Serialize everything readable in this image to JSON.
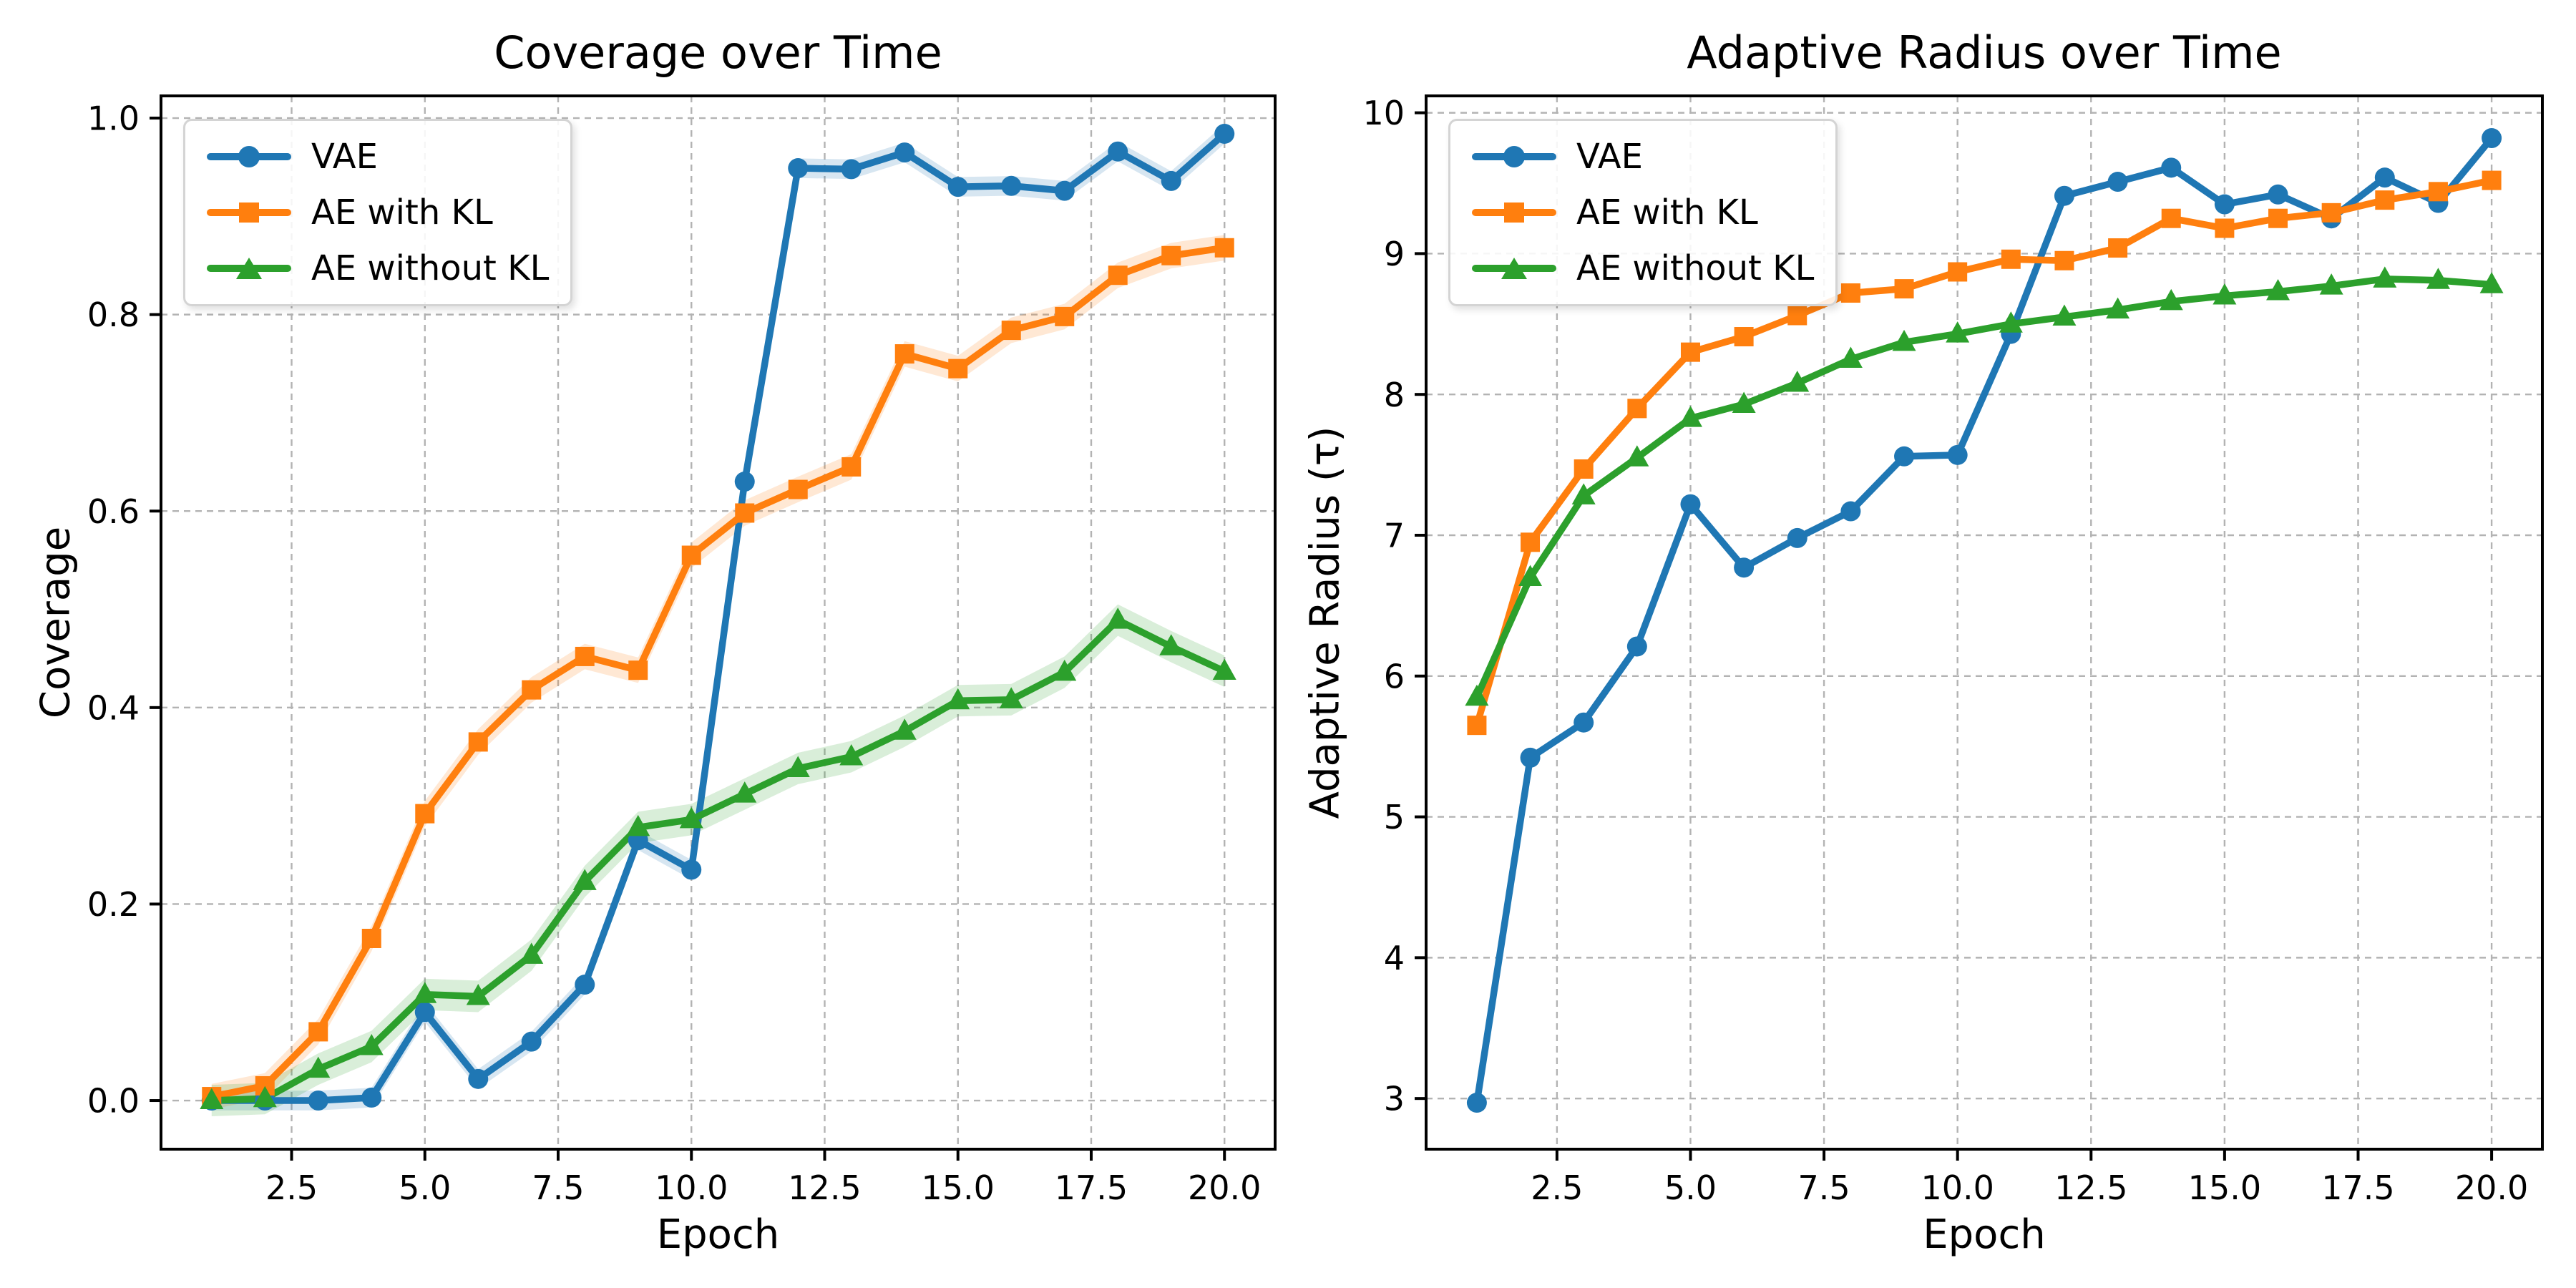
{
  "figure": {
    "background": "#ffffff"
  },
  "colors": {
    "vae": "#1f77b4",
    "ae_with_kl": "#ff7f0e",
    "ae_without_kl": "#2ca02c",
    "grid": "#b3b3b3",
    "spine": "#000000",
    "text": "#000000"
  },
  "legend": {
    "entries": [
      {
        "label": "VAE",
        "marker": "circle",
        "color": "#1f77b4"
      },
      {
        "label": "AE with KL",
        "marker": "square",
        "color": "#ff7f0e"
      },
      {
        "label": "AE without KL",
        "marker": "triangle",
        "color": "#2ca02c"
      }
    ]
  },
  "chart_data": [
    {
      "type": "line",
      "title": "Coverage over Time",
      "xlabel": "Epoch",
      "ylabel": "Coverage",
      "x": [
        1,
        2,
        3,
        4,
        5,
        6,
        7,
        8,
        9,
        10,
        11,
        12,
        13,
        14,
        15,
        16,
        17,
        18,
        19,
        20
      ],
      "xlim": [
        0.05,
        20.95
      ],
      "ylim": [
        -0.0495,
        1.0226
      ],
      "grid": true,
      "legend_position": "upper left",
      "xticks": [
        {
          "v": 2.5,
          "label": "2.5"
        },
        {
          "v": 5,
          "label": "5.0"
        },
        {
          "v": 7.5,
          "label": "7.5"
        },
        {
          "v": 10,
          "label": "10.0"
        },
        {
          "v": 12.5,
          "label": "12.5"
        },
        {
          "v": 15,
          "label": "15.0"
        },
        {
          "v": 17.5,
          "label": "17.5"
        },
        {
          "v": 20,
          "label": "20.0"
        }
      ],
      "yticks": [
        {
          "v": 0.0,
          "label": "0.0"
        },
        {
          "v": 0.2,
          "label": "0.2"
        },
        {
          "v": 0.4,
          "label": "0.4"
        },
        {
          "v": 0.6,
          "label": "0.6"
        },
        {
          "v": 0.8,
          "label": "0.8"
        },
        {
          "v": 1.0,
          "label": "1.0"
        }
      ],
      "series": [
        {
          "name": "VAE",
          "color": "#1f77b4",
          "marker": "circle",
          "band": 0.01,
          "values": [
            0.0,
            0.0,
            0.0,
            0.003,
            0.09,
            0.022,
            0.06,
            0.118,
            0.265,
            0.235,
            0.63,
            0.949,
            0.948,
            0.965,
            0.93,
            0.931,
            0.926,
            0.966,
            0.936,
            0.984
          ]
        },
        {
          "name": "AE with KL",
          "color": "#ff7f0e",
          "marker": "square",
          "band": 0.013,
          "values": [
            0.004,
            0.015,
            0.07,
            0.165,
            0.292,
            0.365,
            0.418,
            0.452,
            0.438,
            0.555,
            0.598,
            0.622,
            0.645,
            0.76,
            0.745,
            0.784,
            0.798,
            0.84,
            0.86,
            0.868
          ]
        },
        {
          "name": "AE without KL",
          "color": "#2ca02c",
          "marker": "triangle",
          "band": 0.016,
          "values": [
            0.0,
            0.002,
            0.032,
            0.055,
            0.108,
            0.106,
            0.148,
            0.223,
            0.278,
            0.286,
            0.312,
            0.338,
            0.35,
            0.376,
            0.407,
            0.408,
            0.436,
            0.489,
            0.462,
            0.437
          ]
        }
      ]
    },
    {
      "type": "line",
      "title": "Adaptive Radius over Time",
      "xlabel": "Epoch",
      "ylabel": "Adaptive Radius (τ)",
      "x": [
        1,
        2,
        3,
        4,
        5,
        6,
        7,
        8,
        9,
        10,
        11,
        12,
        13,
        14,
        15,
        16,
        17,
        18,
        19,
        20
      ],
      "xlim": [
        0.05,
        20.95
      ],
      "ylim": [
        2.64,
        10.12
      ],
      "grid": true,
      "legend_position": "upper left",
      "xticks": [
        {
          "v": 2.5,
          "label": "2.5"
        },
        {
          "v": 5,
          "label": "5.0"
        },
        {
          "v": 7.5,
          "label": "7.5"
        },
        {
          "v": 10,
          "label": "10.0"
        },
        {
          "v": 12.5,
          "label": "12.5"
        },
        {
          "v": 15,
          "label": "15.0"
        },
        {
          "v": 17.5,
          "label": "17.5"
        },
        {
          "v": 20,
          "label": "20.0"
        }
      ],
      "yticks": [
        {
          "v": 3,
          "label": "3"
        },
        {
          "v": 4,
          "label": "4"
        },
        {
          "v": 5,
          "label": "5"
        },
        {
          "v": 6,
          "label": "6"
        },
        {
          "v": 7,
          "label": "7"
        },
        {
          "v": 8,
          "label": "8"
        },
        {
          "v": 9,
          "label": "9"
        },
        {
          "v": 10,
          "label": "10"
        }
      ],
      "series": [
        {
          "name": "VAE",
          "color": "#1f77b4",
          "marker": "circle",
          "band": 0,
          "values": [
            2.97,
            5.42,
            5.67,
            6.21,
            7.22,
            6.77,
            6.98,
            7.17,
            7.56,
            7.57,
            8.43,
            9.41,
            9.51,
            9.61,
            9.35,
            9.42,
            9.25,
            9.54,
            9.36,
            9.82
          ]
        },
        {
          "name": "AE with KL",
          "color": "#ff7f0e",
          "marker": "square",
          "band": 0,
          "values": [
            5.65,
            6.95,
            7.47,
            7.9,
            8.3,
            8.41,
            8.56,
            8.72,
            8.75,
            8.87,
            8.96,
            8.95,
            9.04,
            9.25,
            9.18,
            9.25,
            9.29,
            9.38,
            9.44,
            9.52
          ]
        },
        {
          "name": "AE without KL",
          "color": "#2ca02c",
          "marker": "triangle",
          "band": 0,
          "values": [
            5.85,
            6.7,
            7.28,
            7.55,
            7.83,
            7.93,
            8.08,
            8.25,
            8.37,
            8.43,
            8.5,
            8.55,
            8.6,
            8.66,
            8.7,
            8.73,
            8.77,
            8.82,
            8.81,
            8.78
          ]
        }
      ]
    }
  ]
}
